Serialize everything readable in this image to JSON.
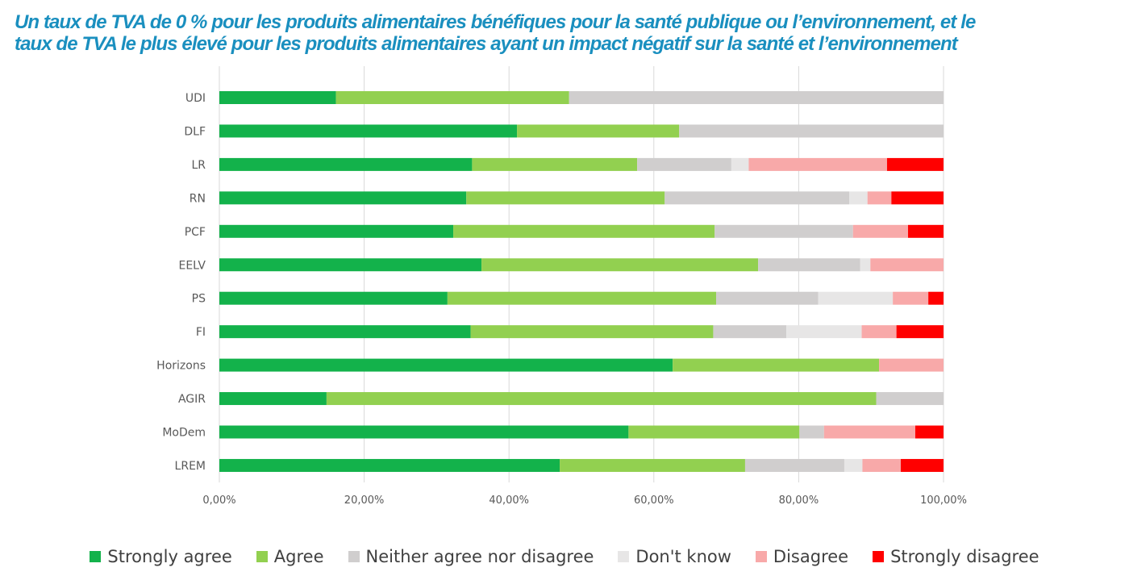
{
  "title": {
    "line1": "Un taux de TVA de 0 % pour les produits alimentaires bénéfiques pour la santé publique ou l’environnement, et le",
    "line2": "taux de TVA le plus élevé pour les produits alimentaires ayant un impact négatif sur la santé et l’environnement"
  },
  "chart_data": {
    "type": "bar",
    "orientation": "horizontal",
    "stacked": true,
    "title": "Un taux de TVA de 0 % pour les produits alimentaires bénéfiques pour la santé publique ou l’environnement, et le taux de TVA le plus élevé pour les produits alimentaires ayant un impact négatif sur la santé et l’environnement",
    "categories": [
      "UDI",
      "DLF",
      "LR",
      "RN",
      "PCF",
      "EELV",
      "PS",
      "FI",
      "Horizons",
      "AGIR",
      "MoDem",
      "LREM"
    ],
    "xlim": [
      0,
      100
    ],
    "x_ticks": [
      "0,00%",
      "20,00%",
      "40,00%",
      "60,00%",
      "80,00%",
      "100,00%"
    ],
    "grid": "vertical",
    "legend_position": "bottom",
    "series": [
      {
        "name": "Strongly agree",
        "color": "#13b24b",
        "values": [
          16.1,
          41.1,
          34.9,
          34.1,
          32.3,
          36.2,
          31.5,
          34.7,
          62.6,
          14.8,
          56.5,
          47.0
        ]
      },
      {
        "name": "Agree",
        "color": "#92d050",
        "values": [
          32.2,
          22.4,
          22.8,
          27.4,
          36.1,
          38.2,
          37.1,
          33.5,
          28.5,
          75.9,
          23.6,
          25.6
        ]
      },
      {
        "name": "Neither agree nor disagree",
        "color": "#d0cece",
        "values": [
          51.7,
          36.5,
          13.0,
          25.5,
          19.1,
          14.1,
          14.1,
          10.1,
          0,
          9.3,
          3.4,
          13.7
        ]
      },
      {
        "name": "Don't know",
        "color": "#e7e6e6",
        "values": [
          0,
          0,
          2.4,
          2.5,
          0,
          1.4,
          10.3,
          10.4,
          0,
          0,
          0,
          2.5
        ]
      },
      {
        "name": "Disagree",
        "color": "#f8a9a9",
        "values": [
          0,
          0,
          19.1,
          3.3,
          7.6,
          10.1,
          4.9,
          4.8,
          8.9,
          0,
          12.6,
          5.3
        ]
      },
      {
        "name": "Strongly disagree",
        "color": "#ff0000",
        "values": [
          0,
          0,
          7.8,
          7.2,
          4.9,
          0,
          2.1,
          6.5,
          0,
          0,
          3.9,
          5.9
        ]
      }
    ]
  }
}
